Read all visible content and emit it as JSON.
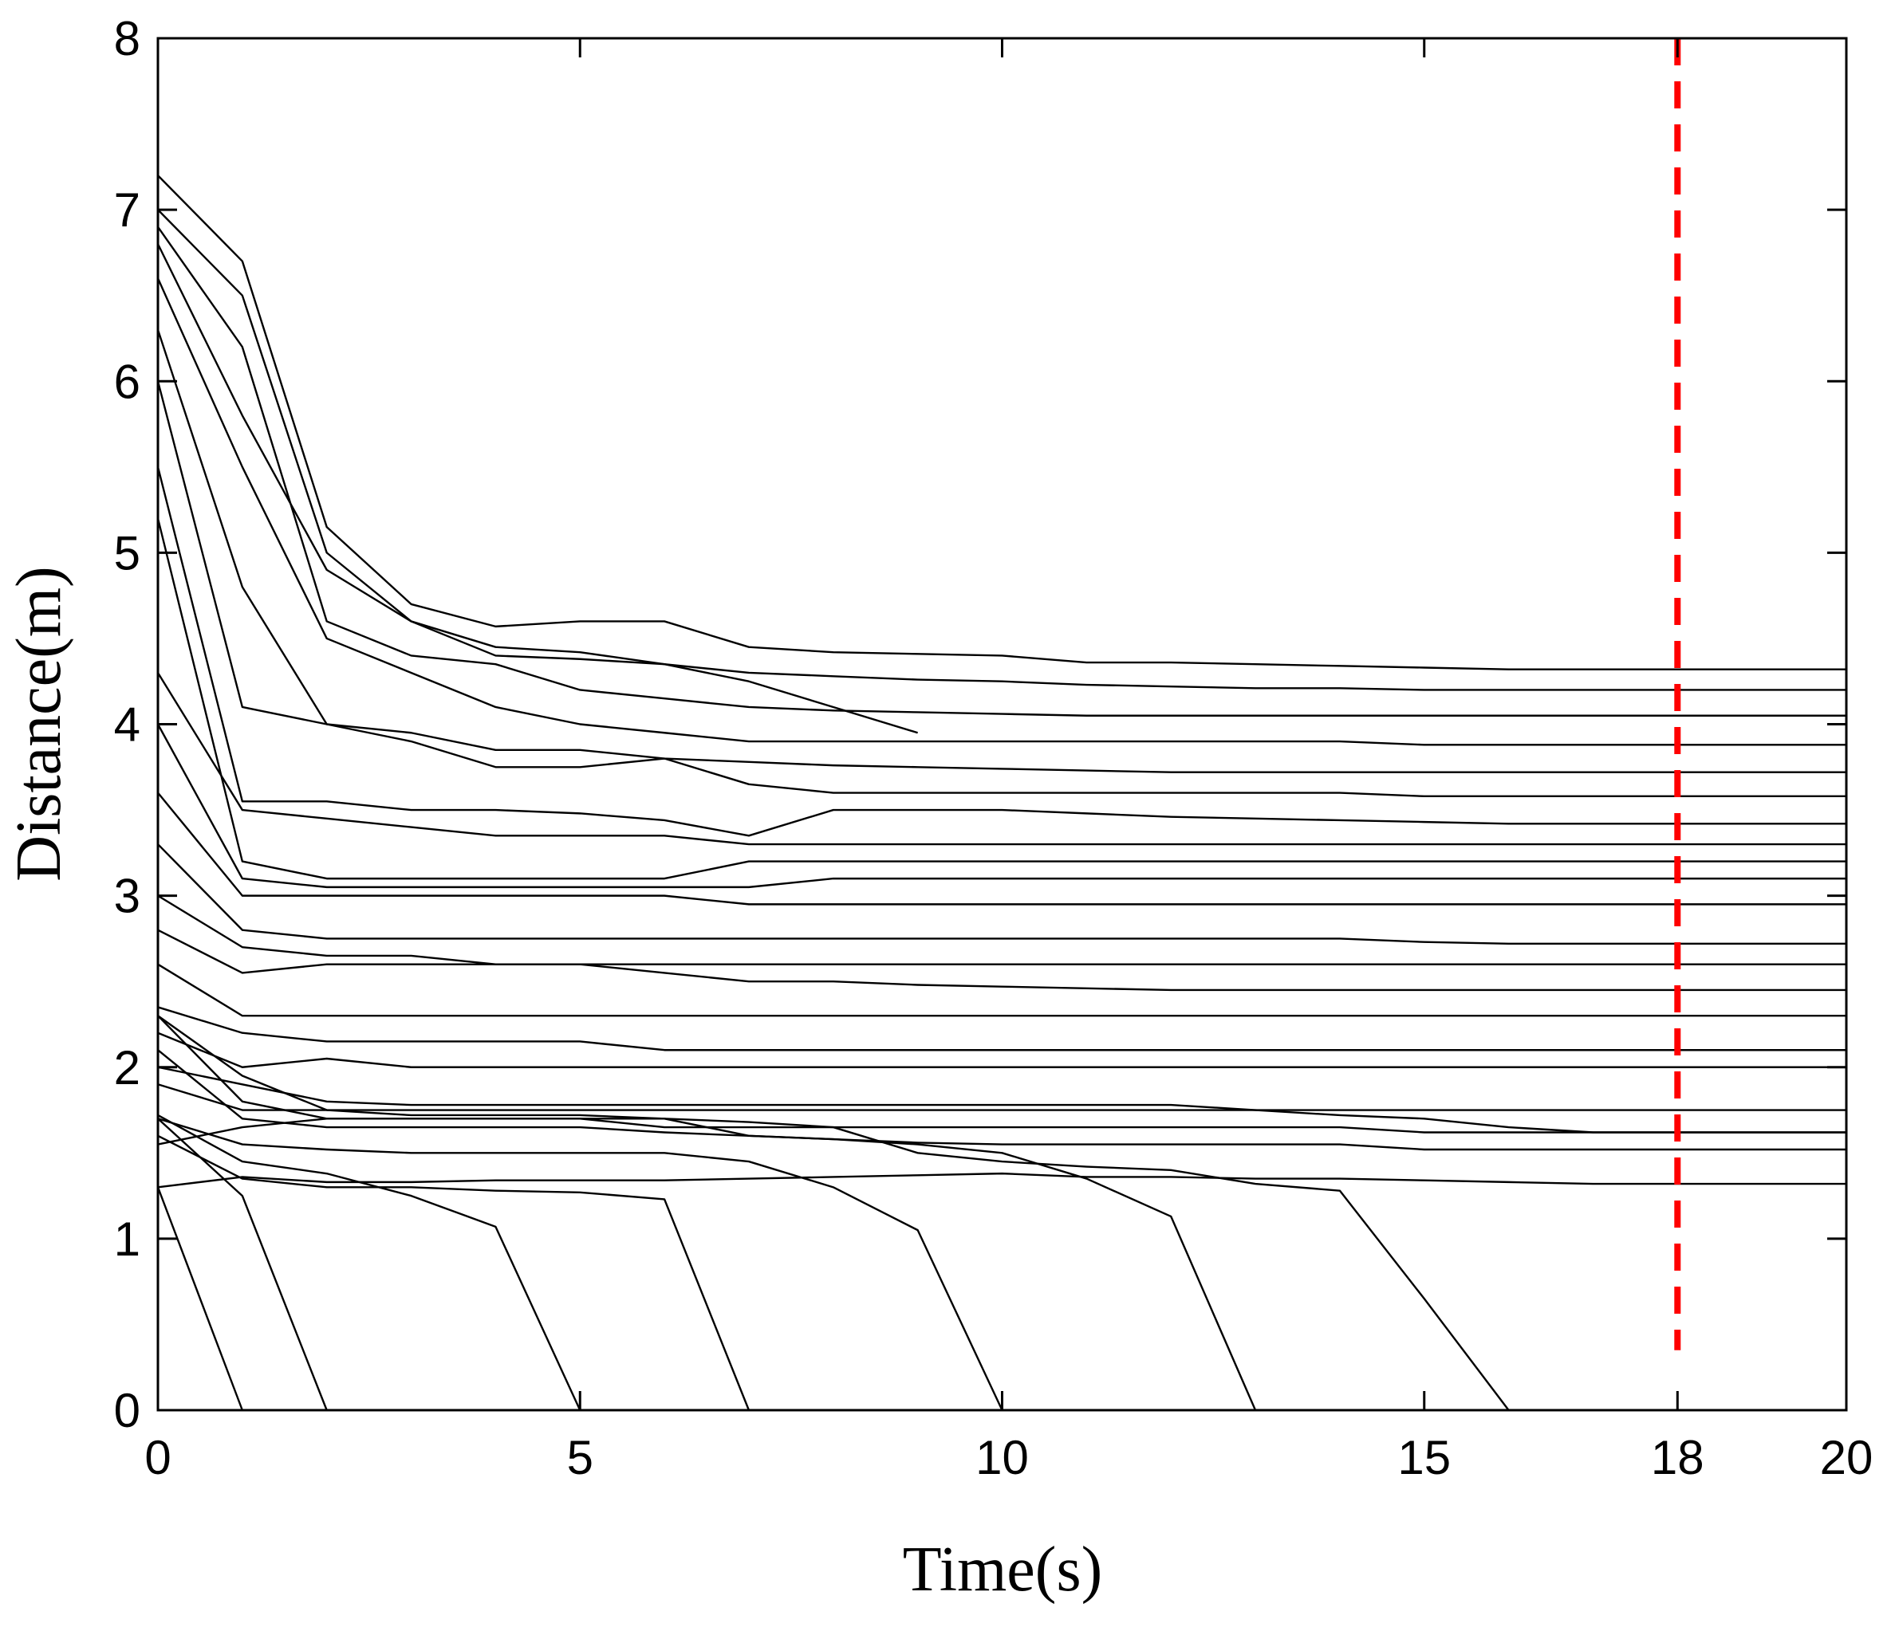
{
  "chart_data": {
    "type": "line",
    "x_label": "Time(s)",
    "y_label": "Distance(m)",
    "x": [
      0,
      1,
      2,
      3,
      4,
      5,
      6,
      7,
      8,
      9,
      10,
      11,
      12,
      13,
      14,
      15,
      16,
      17,
      18,
      19,
      20
    ],
    "xlim": [
      0,
      20
    ],
    "xticks": [
      0,
      5,
      10,
      15,
      18,
      20
    ],
    "ylim": [
      0,
      8
    ],
    "yticks": [
      0,
      1,
      2,
      3,
      4,
      5,
      6,
      7,
      8
    ],
    "vline": {
      "x": 18,
      "ymin": 0.35,
      "color": "#ff0000",
      "dashed": true
    },
    "series": [
      {
        "color": "#000000",
        "values": [
          7.2,
          6.7,
          5.15,
          4.7,
          4.57,
          4.6,
          4.6,
          4.45,
          4.42,
          4.41,
          4.4,
          4.36,
          4.36,
          4.35,
          4.34,
          4.33,
          4.32,
          4.32,
          4.32,
          4.32,
          4.32
        ]
      },
      {
        "color": "#000000",
        "values": [
          7.0,
          6.5,
          5.0,
          4.6,
          4.45,
          4.42,
          4.35,
          4.3,
          4.28,
          4.26,
          4.25,
          4.23,
          4.22,
          4.21,
          4.21,
          4.2,
          4.2,
          4.2,
          4.2,
          4.2,
          4.2
        ]
      },
      {
        "color": "#000000",
        "values": [
          6.9,
          6.2,
          4.6,
          4.4,
          4.35,
          4.2,
          4.15,
          4.1,
          4.08,
          4.07,
          4.06,
          4.05,
          4.05,
          4.05,
          4.05,
          4.05,
          4.05,
          4.05,
          4.05,
          4.05,
          4.05
        ]
      },
      {
        "color": "#000000",
        "values": [
          6.6,
          5.5,
          4.5,
          4.3,
          4.1,
          4.0,
          3.95,
          3.9,
          3.9,
          3.9,
          3.9,
          3.9,
          3.9,
          3.9,
          3.9,
          3.88,
          3.88,
          3.88,
          3.88,
          3.88,
          3.88
        ]
      },
      {
        "color": "#000000",
        "values": [
          6.8,
          5.8,
          4.9,
          4.6,
          4.4,
          4.38,
          4.35,
          4.25,
          4.1,
          3.95,
          null,
          null,
          null,
          null,
          null,
          null,
          null,
          null,
          null,
          null,
          null
        ]
      },
      {
        "color": "#000000",
        "values": [
          6.3,
          4.8,
          4.0,
          3.95,
          3.85,
          3.85,
          3.8,
          3.78,
          3.76,
          3.75,
          3.74,
          3.73,
          3.72,
          3.72,
          3.72,
          3.72,
          3.72,
          3.72,
          3.72,
          3.72,
          3.72
        ]
      },
      {
        "color": "#000000",
        "values": [
          6.0,
          4.1,
          4.0,
          3.9,
          3.75,
          3.75,
          3.8,
          3.65,
          3.6,
          3.6,
          3.6,
          3.6,
          3.6,
          3.6,
          3.6,
          3.58,
          3.58,
          3.58,
          3.58,
          3.58,
          3.58
        ]
      },
      {
        "color": "#000000",
        "values": [
          5.5,
          3.55,
          3.55,
          3.5,
          3.5,
          3.48,
          3.44,
          3.35,
          3.5,
          3.5,
          3.5,
          3.48,
          3.46,
          3.45,
          3.44,
          3.43,
          3.42,
          3.42,
          3.42,
          3.42,
          3.42
        ]
      },
      {
        "color": "#000000",
        "values": [
          4.3,
          3.5,
          3.45,
          3.4,
          3.35,
          3.35,
          3.35,
          3.3,
          3.3,
          3.3,
          3.3,
          3.3,
          3.3,
          3.3,
          3.3,
          3.3,
          3.3,
          3.3,
          3.3,
          3.3,
          3.3
        ]
      },
      {
        "color": "#000000",
        "values": [
          5.2,
          3.2,
          3.1,
          3.1,
          3.1,
          3.1,
          3.1,
          3.2,
          3.2,
          3.2,
          3.2,
          3.2,
          3.2,
          3.2,
          3.2,
          3.2,
          3.2,
          3.2,
          3.2,
          3.2,
          3.2
        ]
      },
      {
        "color": "#000000",
        "values": [
          4.0,
          3.1,
          3.05,
          3.05,
          3.05,
          3.05,
          3.05,
          3.05,
          3.1,
          3.1,
          3.1,
          3.1,
          3.1,
          3.1,
          3.1,
          3.1,
          3.1,
          3.1,
          3.1,
          3.1,
          3.1
        ]
      },
      {
        "color": "#000000",
        "values": [
          3.6,
          3.0,
          3.0,
          3.0,
          3.0,
          3.0,
          3.0,
          2.95,
          2.95,
          2.95,
          2.95,
          2.95,
          2.95,
          2.95,
          2.95,
          2.95,
          2.95,
          2.95,
          2.95,
          2.95,
          2.95
        ]
      },
      {
        "color": "#000000",
        "values": [
          3.3,
          2.8,
          2.75,
          2.75,
          2.75,
          2.75,
          2.75,
          2.75,
          2.75,
          2.75,
          2.75,
          2.75,
          2.75,
          2.75,
          2.75,
          2.73,
          2.72,
          2.72,
          2.72,
          2.72,
          2.72
        ]
      },
      {
        "color": "#000000",
        "values": [
          3.0,
          2.7,
          2.65,
          2.65,
          2.6,
          2.6,
          2.55,
          2.5,
          2.5,
          2.48,
          2.47,
          2.46,
          2.45,
          2.45,
          2.45,
          2.45,
          2.45,
          2.45,
          2.45,
          2.45,
          2.45
        ]
      },
      {
        "color": "#000000",
        "values": [
          2.8,
          2.55,
          2.6,
          2.6,
          2.6,
          2.6,
          2.6,
          2.6,
          2.6,
          2.6,
          2.6,
          2.6,
          2.6,
          2.6,
          2.6,
          2.6,
          2.6,
          2.6,
          2.6,
          2.6,
          2.6
        ]
      },
      {
        "color": "#000000",
        "values": [
          2.6,
          2.3,
          2.3,
          2.3,
          2.3,
          2.3,
          2.3,
          2.3,
          2.3,
          2.3,
          2.3,
          2.3,
          2.3,
          2.3,
          2.3,
          2.3,
          2.3,
          2.3,
          2.3,
          2.3,
          2.3
        ]
      },
      {
        "color": "#000000",
        "values": [
          2.35,
          2.2,
          2.15,
          2.15,
          2.15,
          2.15,
          2.1,
          2.1,
          2.1,
          2.1,
          2.1,
          2.1,
          2.1,
          2.1,
          2.1,
          2.1,
          2.1,
          2.1,
          2.1,
          2.1,
          2.1
        ]
      },
      {
        "color": "#000000",
        "values": [
          2.2,
          2.0,
          2.05,
          2.0,
          2.0,
          2.0,
          2.0,
          2.0,
          2.0,
          2.0,
          2.0,
          2.0,
          2.0,
          2.0,
          2.0,
          2.0,
          2.0,
          2.0,
          2.0,
          2.0,
          2.0
        ]
      },
      {
        "color": "#000000",
        "values": [
          1.9,
          1.75,
          1.75,
          1.75,
          1.75,
          1.75,
          1.75,
          1.75,
          1.75,
          1.75,
          1.75,
          1.75,
          1.75,
          1.75,
          1.75,
          1.75,
          1.75,
          1.75,
          1.75,
          1.75,
          1.75
        ]
      },
      {
        "color": "#000000",
        "values": [
          1.55,
          1.65,
          1.7,
          1.7,
          1.7,
          1.7,
          1.65,
          1.65,
          1.65,
          1.65,
          1.65,
          1.65,
          1.65,
          1.65,
          1.65,
          1.62,
          1.62,
          1.62,
          1.62,
          1.62,
          1.62
        ]
      },
      {
        "color": "#000000",
        "values": [
          2.3,
          1.95,
          1.75,
          1.72,
          1.72,
          1.72,
          1.7,
          1.6,
          1.58,
          1.56,
          1.55,
          1.55,
          1.55,
          1.55,
          1.55,
          1.52,
          1.52,
          1.52,
          1.52,
          1.52,
          1.52
        ]
      },
      {
        "color": "#000000",
        "values": [
          1.3,
          1.36,
          1.33,
          1.33,
          1.34,
          1.34,
          1.34,
          1.35,
          1.36,
          1.37,
          1.38,
          1.36,
          1.36,
          1.35,
          1.35,
          1.34,
          1.33,
          1.32,
          1.32,
          1.32,
          1.32
        ]
      },
      {
        "color": "#000000",
        "values": [
          2.0,
          1.9,
          1.8,
          1.78,
          1.78,
          1.78,
          1.78,
          1.78,
          1.78,
          1.78,
          1.78,
          1.78,
          1.78,
          1.75,
          1.72,
          1.7,
          1.65,
          1.62,
          1.62,
          1.62,
          1.62
        ]
      },
      {
        "color": "#000000",
        "values": [
          1.3,
          0,
          null,
          null,
          null,
          null,
          null,
          null,
          null,
          null,
          null,
          null,
          null,
          null,
          null,
          null,
          null,
          null,
          null,
          null,
          null
        ]
      },
      {
        "color": "#000000",
        "values": [
          1.7,
          1.25,
          0,
          null,
          null,
          null,
          null,
          null,
          null,
          null,
          null,
          null,
          null,
          null,
          null,
          null,
          null,
          null,
          null,
          null,
          null
        ]
      },
      {
        "color": "#000000",
        "values": [
          1.72,
          1.45,
          1.38,
          1.25,
          1.07,
          0,
          null,
          null,
          null,
          null,
          null,
          null,
          null,
          null,
          null,
          null,
          null,
          null,
          null,
          null,
          null
        ]
      },
      {
        "color": "#000000",
        "values": [
          1.6,
          1.35,
          1.3,
          1.3,
          1.28,
          1.27,
          1.23,
          0,
          null,
          null,
          null,
          null,
          null,
          null,
          null,
          null,
          null,
          null,
          null,
          null,
          null
        ]
      },
      {
        "color": "#000000",
        "values": [
          1.7,
          1.55,
          1.52,
          1.5,
          1.5,
          1.5,
          1.5,
          1.45,
          1.3,
          1.05,
          0,
          null,
          null,
          null,
          null,
          null,
          null,
          null,
          null,
          null,
          null
        ]
      },
      {
        "color": "#000000",
        "values": [
          2.1,
          1.7,
          1.65,
          1.65,
          1.65,
          1.65,
          1.62,
          1.6,
          1.58,
          1.55,
          1.5,
          1.35,
          1.13,
          0,
          null,
          null,
          null,
          null,
          null,
          null,
          null
        ]
      },
      {
        "color": "#000000",
        "values": [
          2.3,
          1.8,
          1.7,
          1.7,
          1.7,
          1.7,
          1.7,
          1.68,
          1.65,
          1.5,
          1.45,
          1.42,
          1.4,
          1.32,
          1.28,
          0.65,
          0,
          null,
          null,
          null,
          null
        ]
      }
    ]
  }
}
